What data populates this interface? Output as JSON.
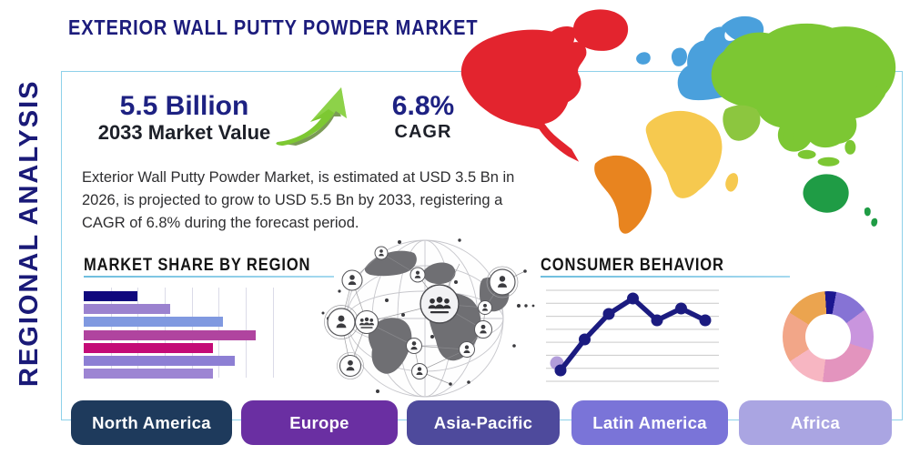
{
  "header": {
    "page_title": "EXTERIOR WALL PUTTY POWDER MARKET",
    "sidebar_label": "REGIONAL ANALYSIS"
  },
  "stats": {
    "value": "5.5 Billion",
    "value_label": "2033 Market Value",
    "cagr": "6.8%",
    "cagr_label": "CAGR",
    "growth_arrow_color": "#7dc832"
  },
  "description": "Exterior Wall Putty Powder Market, is estimated at USD 3.5 Bn in 2026, is projected to grow to USD 5.5 Bn by 2033, registering a CAGR of 6.8% during the forecast period.",
  "chart_data": [
    {
      "type": "bar",
      "title": "MARKET SHARE BY REGION",
      "orientation": "horizontal",
      "categories": [
        "",
        "",
        "",
        "",
        "",
        "",
        ""
      ],
      "values_relative": [
        31,
        50,
        81,
        100,
        75,
        88,
        75
      ],
      "bar_colors": [
        "#10087d",
        "#9b82cf",
        "#8099e0",
        "#b0449f",
        "#c40b77",
        "#8d7fd4",
        "#9d85d3"
      ],
      "grid": "vertical",
      "note": "bars are unlabeled in the infographic"
    },
    {
      "type": "line",
      "title": "CONSUMER BEHAVIOR",
      "x": [
        1,
        2,
        3,
        4,
        5,
        6,
        7
      ],
      "values_relative": [
        12,
        46,
        74,
        91,
        67,
        80,
        67
      ],
      "line_color": "#1b1b80",
      "marker": "circle",
      "start_accent_dot_color": "#b29dda",
      "grid": "horizontal",
      "gridline_count": 8,
      "gridline_color": "#c9c9c9"
    },
    {
      "type": "pie",
      "donut": true,
      "start_angle_deg": -4,
      "slices_pct": [
        4,
        12,
        15,
        22,
        14,
        18,
        15
      ],
      "slice_colors": [
        "#1c1690",
        "#8673d5",
        "#c995de",
        "#e394be",
        "#f7b6c2",
        "#f2a688",
        "#eba44f"
      ]
    }
  ],
  "region_buttons": [
    {
      "label": "North America",
      "color": "#1e3a5c"
    },
    {
      "label": "Europe",
      "color": "#6a2fa2"
    },
    {
      "label": "Asia-Pacific",
      "color": "#4e4a9c"
    },
    {
      "label": "Latin America",
      "color": "#7a74d8"
    },
    {
      "label": "Africa",
      "color": "#aaa5e2"
    }
  ],
  "world_map_colors": {
    "north-america": "#e3242e",
    "greenland": "#e3242e",
    "iceland": "#4aa0dc",
    "south-america": "#e8841f",
    "europe": "#4aa0dc",
    "uk": "#4aa0dc",
    "scandinavia": "#4aa0dc",
    "africa": "#f6c94f",
    "madagascar": "#f6c94f",
    "asia": "#7cc733",
    "middle-east": "#8cc63f",
    "se-asia": "#7cc733",
    "japan": "#7cc733",
    "australia": "#1f9c45",
    "new-zealand": "#1f9c45"
  },
  "accents": {
    "card_border": "#8ed1ea",
    "section_underline": "#85cbe8",
    "title_navy": "#1c1c7c"
  }
}
